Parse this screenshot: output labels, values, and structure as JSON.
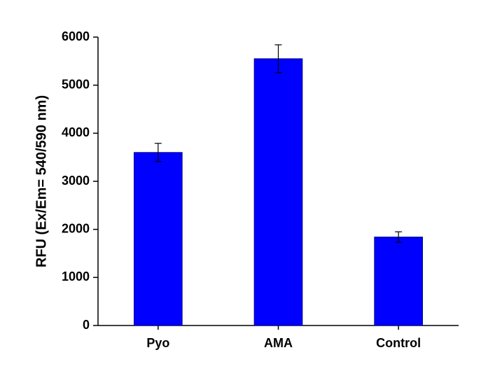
{
  "chart_data": {
    "type": "bar",
    "y_label": "RFU (Ex/Em= 540/590 nm)",
    "categories": [
      "Pyo",
      "AMA",
      "Control"
    ],
    "values": [
      3600,
      5550,
      1840
    ],
    "errors": [
      190,
      290,
      110
    ],
    "color": "#0000ff",
    "ylim": [
      0,
      6000
    ],
    "yticks": [
      0,
      1000,
      2000,
      3000,
      4000,
      5000,
      6000
    ],
    "grid": false
  }
}
